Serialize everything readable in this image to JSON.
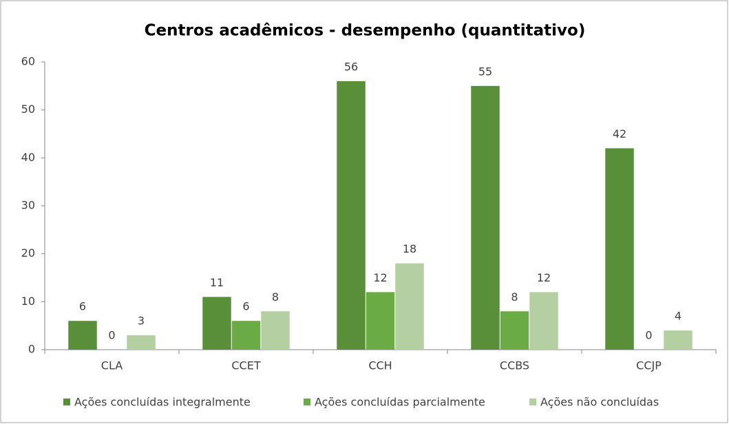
{
  "chart_data": {
    "type": "bar",
    "title": "Centros acadêmicos - desempenho (quantitativo)",
    "categories": [
      "CLA",
      "CCET",
      "CCH",
      "CCBS",
      "CCJP"
    ],
    "series": [
      {
        "name": "Ações concluídas integralmente",
        "color": "#5a8f3a",
        "values": [
          6,
          11,
          56,
          55,
          42
        ]
      },
      {
        "name": "Ações concluídas parcialmente",
        "color": "#6aab45",
        "values": [
          0,
          6,
          12,
          8,
          0
        ]
      },
      {
        "name": "Ações não concluídas",
        "color": "#b4cfa2",
        "values": [
          3,
          8,
          18,
          12,
          4
        ]
      }
    ],
    "ylim": [
      0,
      60
    ],
    "yticks": [
      0,
      10,
      20,
      30,
      40,
      50,
      60
    ],
    "grid": false,
    "legend": "bottom"
  }
}
